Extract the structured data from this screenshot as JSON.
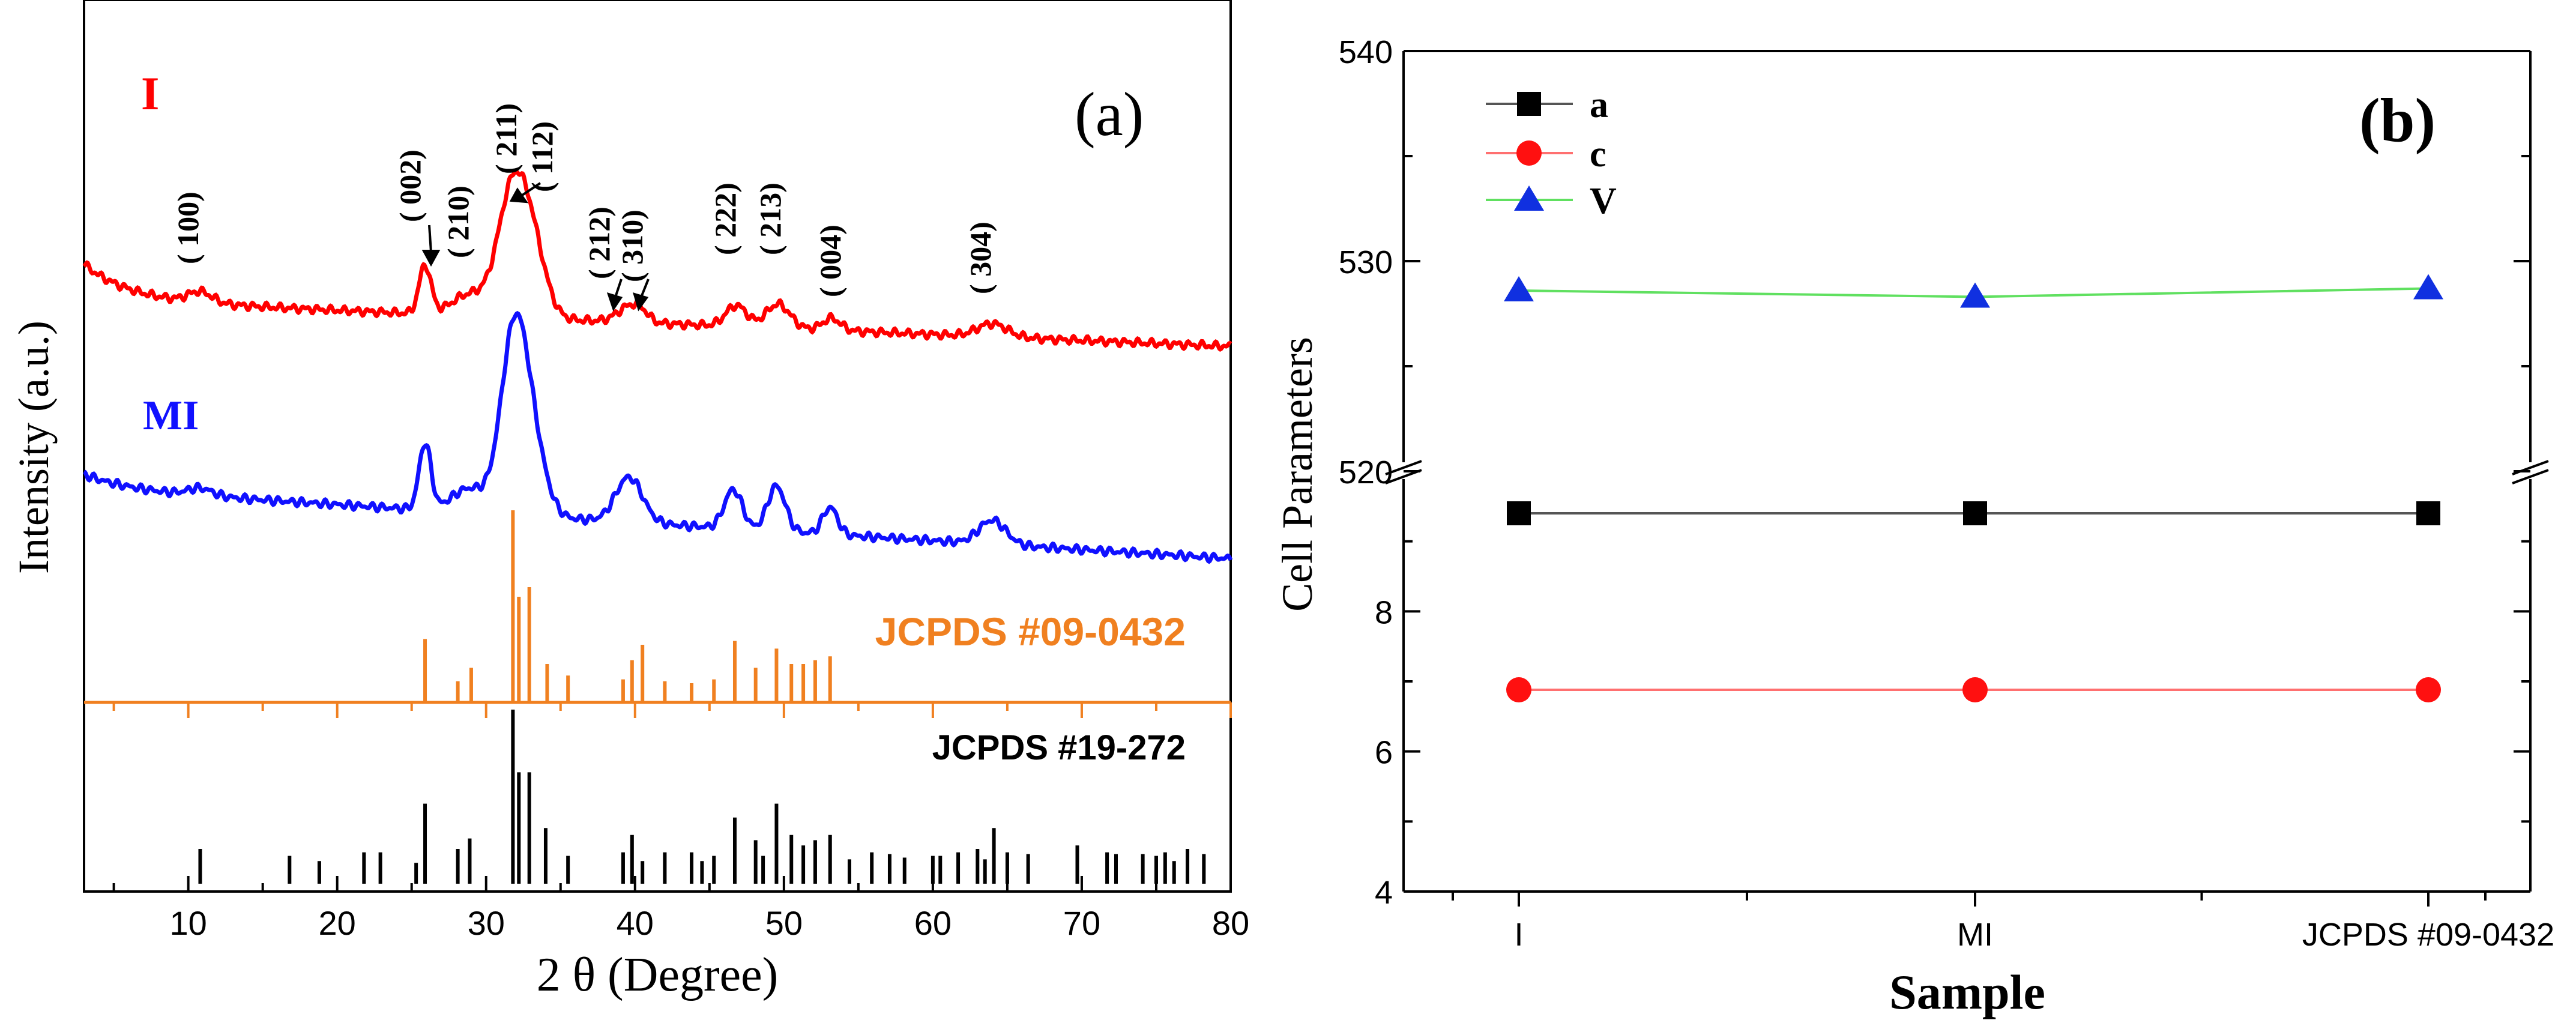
{
  "chart_data": [
    {
      "panel": "a",
      "type": "line",
      "panel_label": "(a)",
      "xlabel": "2 θ (Degree)",
      "ylabel": "Intensity (a.u.)",
      "xlim": [
        3,
        80
      ],
      "xticks": [
        10,
        20,
        30,
        40,
        50,
        60,
        70,
        80
      ],
      "series": [
        {
          "name": "I",
          "color": "#ff0000"
        },
        {
          "name": "MI",
          "color": "#1010ff"
        }
      ],
      "peak_labels": [
        "( 100)",
        "( 002)",
        "( 210)",
        "( 211)",
        "( 112)",
        "( 212)",
        "( 310)",
        "( 222)",
        "( 213)",
        "( 004)",
        "( 304)"
      ],
      "references": [
        {
          "name": "JCPDS #09-0432",
          "color": "#f08020",
          "peaks": [
            {
              "x": 25.9,
              "h": 0.33
            },
            {
              "x": 28.1,
              "h": 0.11
            },
            {
              "x": 29.0,
              "h": 0.18
            },
            {
              "x": 31.8,
              "h": 1.0
            },
            {
              "x": 32.2,
              "h": 0.55
            },
            {
              "x": 32.9,
              "h": 0.6
            },
            {
              "x": 34.1,
              "h": 0.2
            },
            {
              "x": 35.5,
              "h": 0.14
            },
            {
              "x": 39.2,
              "h": 0.12
            },
            {
              "x": 39.8,
              "h": 0.22
            },
            {
              "x": 40.5,
              "h": 0.3
            },
            {
              "x": 42.0,
              "h": 0.11
            },
            {
              "x": 43.8,
              "h": 0.1
            },
            {
              "x": 45.3,
              "h": 0.12
            },
            {
              "x": 46.7,
              "h": 0.32
            },
            {
              "x": 48.1,
              "h": 0.18
            },
            {
              "x": 49.5,
              "h": 0.28
            },
            {
              "x": 50.5,
              "h": 0.2
            },
            {
              "x": 51.3,
              "h": 0.2
            },
            {
              "x": 52.1,
              "h": 0.22
            },
            {
              "x": 53.1,
              "h": 0.24
            }
          ]
        },
        {
          "name": "JCPDS #19-272",
          "color": "#000000",
          "peaks": [
            {
              "x": 10.8,
              "h": 0.2
            },
            {
              "x": 16.8,
              "h": 0.16
            },
            {
              "x": 18.8,
              "h": 0.13
            },
            {
              "x": 21.8,
              "h": 0.18
            },
            {
              "x": 22.9,
              "h": 0.18
            },
            {
              "x": 25.3,
              "h": 0.12
            },
            {
              "x": 25.9,
              "h": 0.46
            },
            {
              "x": 28.1,
              "h": 0.2
            },
            {
              "x": 28.9,
              "h": 0.26
            },
            {
              "x": 31.8,
              "h": 1.0
            },
            {
              "x": 32.2,
              "h": 0.64
            },
            {
              "x": 32.9,
              "h": 0.64
            },
            {
              "x": 34.0,
              "h": 0.32
            },
            {
              "x": 35.5,
              "h": 0.16
            },
            {
              "x": 39.2,
              "h": 0.18
            },
            {
              "x": 39.8,
              "h": 0.28
            },
            {
              "x": 40.5,
              "h": 0.13
            },
            {
              "x": 42.0,
              "h": 0.18
            },
            {
              "x": 43.8,
              "h": 0.18
            },
            {
              "x": 44.5,
              "h": 0.13
            },
            {
              "x": 45.3,
              "h": 0.16
            },
            {
              "x": 46.7,
              "h": 0.38
            },
            {
              "x": 48.1,
              "h": 0.25
            },
            {
              "x": 48.6,
              "h": 0.16
            },
            {
              "x": 49.5,
              "h": 0.46
            },
            {
              "x": 50.5,
              "h": 0.28
            },
            {
              "x": 51.3,
              "h": 0.22
            },
            {
              "x": 52.1,
              "h": 0.25
            },
            {
              "x": 53.1,
              "h": 0.28
            },
            {
              "x": 54.4,
              "h": 0.14
            },
            {
              "x": 55.9,
              "h": 0.18
            },
            {
              "x": 57.1,
              "h": 0.17
            },
            {
              "x": 58.1,
              "h": 0.15
            },
            {
              "x": 60.0,
              "h": 0.16
            },
            {
              "x": 60.5,
              "h": 0.16
            },
            {
              "x": 61.7,
              "h": 0.18
            },
            {
              "x": 63.0,
              "h": 0.2
            },
            {
              "x": 63.5,
              "h": 0.14
            },
            {
              "x": 64.1,
              "h": 0.32
            },
            {
              "x": 65.0,
              "h": 0.18
            },
            {
              "x": 66.4,
              "h": 0.17
            },
            {
              "x": 69.7,
              "h": 0.22
            },
            {
              "x": 71.7,
              "h": 0.18
            },
            {
              "x": 72.3,
              "h": 0.17
            },
            {
              "x": 74.1,
              "h": 0.17
            },
            {
              "x": 75.0,
              "h": 0.16
            },
            {
              "x": 75.6,
              "h": 0.18
            },
            {
              "x": 76.2,
              "h": 0.13
            },
            {
              "x": 77.1,
              "h": 0.2
            },
            {
              "x": 78.2,
              "h": 0.17
            }
          ]
        }
      ]
    },
    {
      "panel": "b",
      "type": "line",
      "panel_label": "(b)",
      "xlabel": "Sample",
      "ylabel": "Cell Parameters",
      "categories": [
        "I",
        "MI",
        "JCPDS #09-0432"
      ],
      "y_upper": {
        "range": [
          520,
          540
        ],
        "ticks": [
          520,
          530,
          540
        ]
      },
      "y_lower": {
        "range": [
          4,
          10
        ],
        "ticks": [
          4,
          6,
          8
        ]
      },
      "series": [
        {
          "name": "a",
          "color": "#000000",
          "line_color": "#555555",
          "marker": "square",
          "values": [
            9.4,
            9.4,
            9.4
          ]
        },
        {
          "name": "c",
          "color": "#ff1010",
          "line_color": "#ff7070",
          "marker": "circle",
          "values": [
            6.88,
            6.88,
            6.88
          ]
        },
        {
          "name": "V",
          "color": "#1030e0",
          "line_color": "#60e060",
          "marker": "triangle",
          "values": [
            528.6,
            528.3,
            528.7
          ]
        }
      ]
    }
  ]
}
